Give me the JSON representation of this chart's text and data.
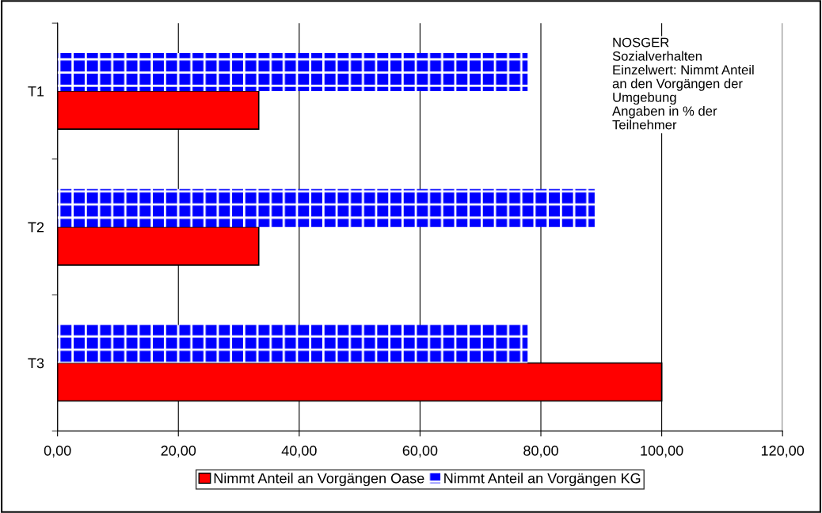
{
  "chart_data": {
    "type": "bar",
    "orientation": "horizontal",
    "categories": [
      "T1",
      "T2",
      "T3"
    ],
    "series": [
      {
        "name": "Nimmt Anteil an Vorgängen Oase",
        "color": "#ff0000",
        "values": [
          33.3,
          33.3,
          100
        ]
      },
      {
        "name": "Nimmt Anteil an Vorgängen KG",
        "color": "#0000ff",
        "values": [
          77.8,
          88.9,
          77.8
        ]
      }
    ],
    "xlim": [
      0,
      120
    ],
    "xticks": [
      {
        "value": 0,
        "label": "0,00"
      },
      {
        "value": 20,
        "label": "20,00"
      },
      {
        "value": 40,
        "label": "40,00"
      },
      {
        "value": 60,
        "label": "60,00"
      },
      {
        "value": 80,
        "label": "80,00"
      },
      {
        "value": 100,
        "label": "100,00"
      },
      {
        "value": 120,
        "label": "120,00"
      }
    ],
    "grid": "x",
    "legend": "bottom",
    "annotations": [
      "NOSGER\nSozialverhalten\nEinzelwert: Nimmt Anteil\nan den Vorgängen der\nUmgebung\nAngaben in % der\nTeilnehmer"
    ]
  }
}
